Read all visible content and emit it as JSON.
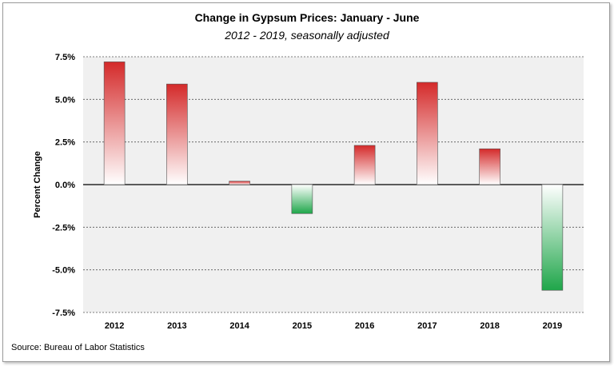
{
  "chart_data": {
    "type": "bar",
    "title": "Change in Gypsum Prices: January - June",
    "subtitle": "2012 - 2019, seasonally adjusted",
    "ylabel": "Percent Change",
    "xlabel": "",
    "categories": [
      "2012",
      "2013",
      "2014",
      "2015",
      "2016",
      "2017",
      "2018",
      "2019"
    ],
    "values": [
      7.2,
      5.9,
      0.2,
      -1.7,
      2.3,
      6.0,
      2.1,
      -6.2
    ],
    "ylim": [
      -7.5,
      7.5
    ],
    "yticks": [
      7.5,
      5.0,
      2.5,
      0.0,
      -2.5,
      -5.0,
      -7.5
    ],
    "ytick_labels": [
      "7.5%",
      "5.0%",
      "2.5%",
      "0.0%",
      "-2.5%",
      "-5.0%",
      "-7.5%"
    ],
    "grid": true,
    "legend": "none",
    "positive_color": "#d42a2a",
    "negative_color": "#1fa64a",
    "plot_background": "#f0f0f0"
  },
  "source_text": "Source:  Bureau of Labor Statistics"
}
